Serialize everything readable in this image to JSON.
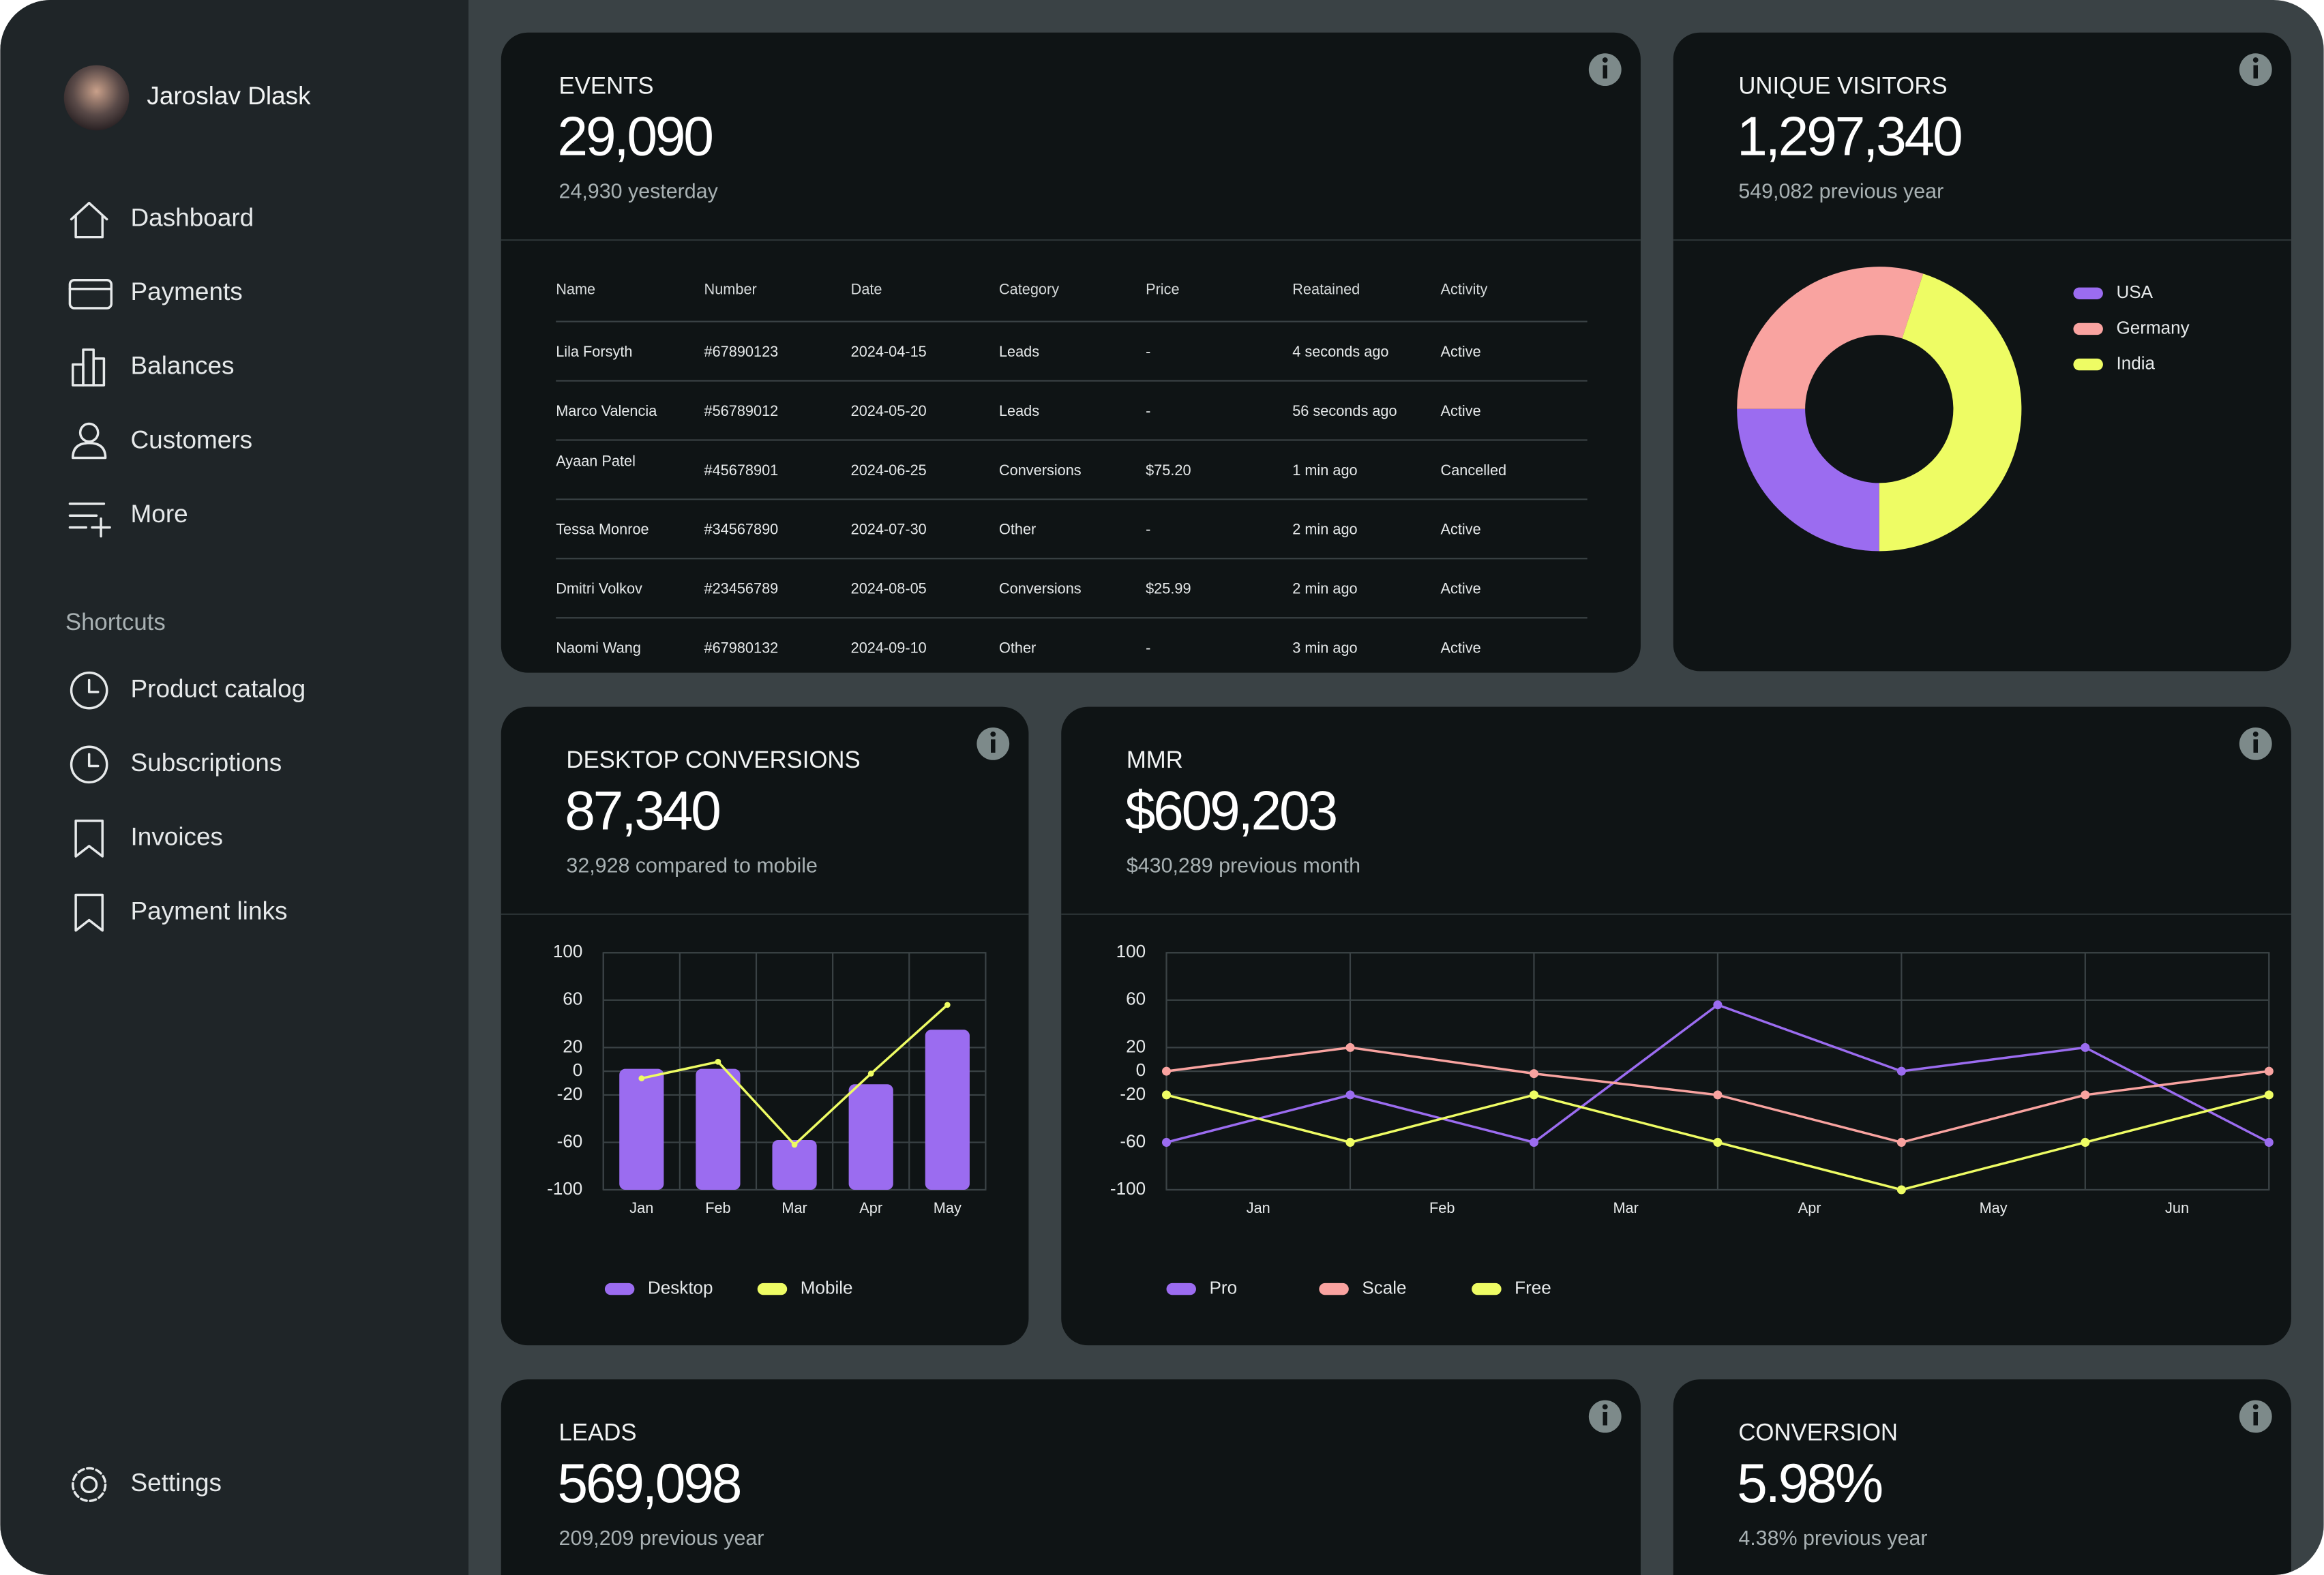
{
  "user": {
    "name": "Jaroslav Dlask"
  },
  "nav": [
    "Dashboard",
    "Payments",
    "Balances",
    "Customers",
    "More"
  ],
  "shortcuts": {
    "title": "Shortcuts",
    "items": [
      "Product catalog",
      "Subscriptions",
      "Invoices",
      "Payment links"
    ]
  },
  "settings": "Settings",
  "cards": {
    "events": {
      "title": "EVENTS",
      "value": "29,090",
      "subtitle": "24,930 yesterday"
    },
    "unique_visitors": {
      "title": "UNIQUE VISITORS",
      "value": "1,297,340",
      "subtitle": "549,082 previous year"
    },
    "desktop_conversions": {
      "title": "DESKTOP CONVERSIONS",
      "value": "87,340",
      "subtitle": "32,928 compared to mobile"
    },
    "mmr": {
      "title": "MMR",
      "value": "$609,203",
      "subtitle": "$430,289 previous month"
    },
    "leads": {
      "title": "LEADS",
      "value": "569,098",
      "subtitle": "209,209 previous year"
    },
    "conversion": {
      "title": "CONVERSION",
      "value": "5.98%",
      "subtitle": "4.38% previous year"
    }
  },
  "table": {
    "headers": [
      "Name",
      "Number",
      "Date",
      "Category",
      "Price",
      "Reatained",
      "Activity"
    ],
    "rows": [
      [
        "Lila Forsyth",
        "#67890123",
        "2024-04-15",
        "Leads",
        "-",
        "4 seconds ago",
        "Active"
      ],
      [
        "Marco Valencia",
        "#56789012",
        "2024-05-20",
        "Leads",
        "-",
        "56 seconds ago",
        "Active"
      ],
      [
        "Ayaan Patel",
        "#45678901",
        "2024-06-25",
        "Conversions",
        "$75.20",
        "1 min ago",
        "Cancelled"
      ],
      [
        "Tessa Monroe",
        "#34567890",
        "2024-07-30",
        "Other",
        "-",
        "2 min ago",
        "Active"
      ],
      [
        "Dmitri Volkov",
        "#23456789",
        "2024-08-05",
        "Conversions",
        "$25.99",
        "2 min ago",
        "Active"
      ],
      [
        "Naomi Wang",
        "#67980132",
        "2024-09-10",
        "Other",
        "-",
        "3 min ago",
        "Active"
      ]
    ]
  },
  "chart_data": [
    {
      "type": "pie",
      "categories": [
        "USA",
        "Germany",
        "India"
      ],
      "values": [
        25,
        30,
        45
      ],
      "colors": [
        "#9b6cf0",
        "#f9a3a0",
        "#eefc64"
      ],
      "donut": true
    },
    {
      "type": "bar",
      "categories": [
        "Jan",
        "Feb",
        "Mar",
        "Apr",
        "May"
      ],
      "series": [
        {
          "name": "Desktop",
          "type": "bar",
          "color": "#9b6cf0",
          "values": [
            2,
            2,
            -58,
            -11,
            35
          ]
        },
        {
          "name": "Mobile",
          "type": "line",
          "color": "#eefc64",
          "values": [
            -6,
            8,
            -62,
            -2,
            56
          ]
        }
      ],
      "ylim": [
        -100,
        100
      ],
      "yticks": [
        100,
        60,
        20,
        0,
        -20,
        -60,
        -100
      ],
      "grid": true
    },
    {
      "type": "line",
      "categories": [
        "Jan",
        "Feb",
        "Mar",
        "Apr",
        "May",
        "Jun",
        null
      ],
      "series": [
        {
          "name": "Pro",
          "color": "#9b6cf0",
          "values": [
            -60,
            -20,
            -60,
            56,
            0,
            20,
            -60
          ]
        },
        {
          "name": "Scale",
          "color": "#f9a3a0",
          "values": [
            0,
            20,
            -2,
            -20,
            -60,
            -20,
            0
          ]
        },
        {
          "name": "Free",
          "color": "#eefc64",
          "values": [
            -20,
            -60,
            -20,
            -60,
            -100,
            -60,
            -20
          ]
        }
      ],
      "ylim": [
        -100,
        100
      ],
      "yticks": [
        100,
        60,
        20,
        0,
        -20,
        -60,
        -100
      ],
      "grid": true
    }
  ]
}
